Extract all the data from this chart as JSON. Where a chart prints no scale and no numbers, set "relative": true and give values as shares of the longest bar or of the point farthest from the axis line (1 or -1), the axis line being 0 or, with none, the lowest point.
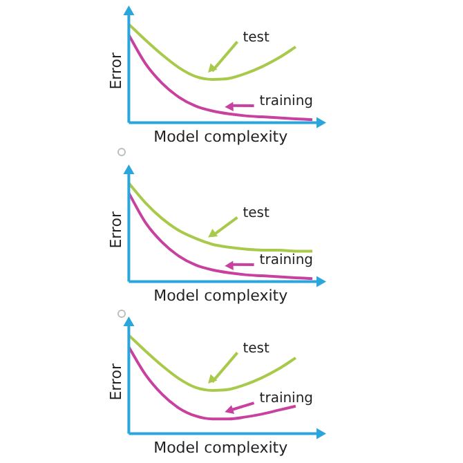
{
  "chart_data": [
    {
      "type": "line",
      "relative": true,
      "xlabel": "Model complexity",
      "ylabel": "Error",
      "categories": [
        null,
        null,
        null,
        null,
        null,
        null,
        null,
        null,
        null,
        null,
        null,
        null
      ],
      "series": [
        {
          "name": "test",
          "color": "#a9c94a",
          "values": [
            1.0,
            0.84,
            0.69,
            0.56,
            0.47,
            0.44,
            0.45,
            0.5,
            0.57,
            0.66,
            0.77,
            null
          ]
        },
        {
          "name": "training",
          "color": "#c8419e",
          "values": [
            0.89,
            0.6,
            0.4,
            0.26,
            0.17,
            0.12,
            0.09,
            0.07,
            0.06,
            0.05,
            0.04,
            0.03
          ]
        }
      ]
    },
    {
      "type": "line",
      "relative": true,
      "xlabel": "Model complexity",
      "ylabel": "Error",
      "categories": [
        null,
        null,
        null,
        null,
        null,
        null,
        null,
        null,
        null,
        null,
        null,
        null
      ],
      "series": [
        {
          "name": "test",
          "color": "#a9c94a",
          "values": [
            1.0,
            0.8,
            0.64,
            0.52,
            0.44,
            0.38,
            0.35,
            0.33,
            0.32,
            0.32,
            0.31,
            0.31
          ]
        },
        {
          "name": "training",
          "color": "#c8419e",
          "values": [
            0.9,
            0.6,
            0.4,
            0.26,
            0.17,
            0.12,
            0.09,
            0.07,
            0.06,
            0.05,
            0.04,
            0.03
          ]
        }
      ]
    },
    {
      "type": "line",
      "relative": true,
      "xlabel": "Model complexity",
      "ylabel": "Error",
      "categories": [
        null,
        null,
        null,
        null,
        null,
        null,
        null,
        null,
        null,
        null,
        null,
        null
      ],
      "series": [
        {
          "name": "test",
          "color": "#a9c94a",
          "values": [
            1.0,
            0.84,
            0.69,
            0.56,
            0.47,
            0.44,
            0.45,
            0.5,
            0.57,
            0.66,
            0.77,
            null
          ]
        },
        {
          "name": "training",
          "color": "#c8419e",
          "values": [
            0.88,
            0.6,
            0.4,
            0.26,
            0.18,
            0.15,
            0.15,
            0.17,
            0.2,
            0.24,
            0.28,
            null
          ]
        }
      ]
    }
  ]
}
